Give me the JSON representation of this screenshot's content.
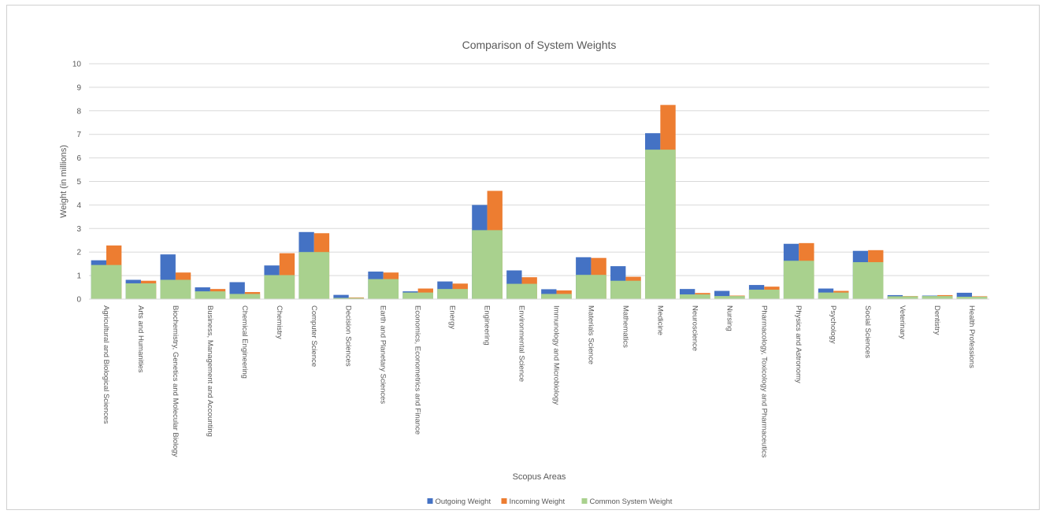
{
  "chart_data": {
    "type": "bar",
    "title": "Comparison of System Weights",
    "xlabel": "Scopus Areas",
    "ylabel": "Weight (in millions)",
    "ylim": [
      0,
      10
    ],
    "yticks": [
      0,
      1,
      2,
      3,
      4,
      5,
      6,
      7,
      8,
      9,
      10
    ],
    "grid": true,
    "legend_position": "bottom",
    "categories": [
      "Agricultural and Biological Sciences",
      "Arts and Humanities",
      "Biochemistry, Genetics and Molecular Biology",
      "Business, Management and Accounting",
      "Chemical Engineering",
      "Chemistry",
      "Computer Science",
      "Decision Sciences",
      "Earth and Planetary Sciences",
      "Economics, Econometrics and Finance",
      "Energy",
      "Engineering",
      "Environmental Science",
      "Immunology and Microbiology",
      "Materials Science",
      "Mathematics",
      "Medicine",
      "Neuroscience",
      "Nursing",
      "Pharmacology, Toxicology and Pharmaceutics",
      "Physics and Astronomy",
      "Psychology",
      "Social Sciences",
      "Veterinary",
      "Dentistry",
      "Health Professions"
    ],
    "series": [
      {
        "name": "Outgoing Weight",
        "color": "#4472C4",
        "values": [
          1.65,
          0.82,
          1.9,
          0.5,
          0.72,
          1.43,
          2.85,
          0.18,
          1.17,
          0.33,
          0.75,
          4.0,
          1.22,
          0.42,
          1.78,
          1.4,
          7.05,
          0.43,
          0.35,
          0.6,
          2.35,
          0.45,
          2.05,
          0.17,
          0.15,
          0.27
        ]
      },
      {
        "name": "Incoming Weight",
        "color": "#ED7D31",
        "values": [
          2.28,
          0.78,
          1.13,
          0.43,
          0.3,
          1.95,
          2.8,
          0.07,
          1.13,
          0.45,
          0.66,
          4.6,
          0.93,
          0.37,
          1.75,
          0.95,
          8.25,
          0.26,
          0.15,
          0.53,
          2.38,
          0.35,
          2.08,
          0.13,
          0.17,
          0.12
        ]
      },
      {
        "name": "Common System Weight",
        "color": "#A9D18E",
        "values": [
          1.45,
          0.67,
          0.82,
          0.33,
          0.22,
          1.02,
          2.0,
          0.05,
          0.85,
          0.28,
          0.43,
          2.93,
          0.65,
          0.22,
          1.03,
          0.78,
          6.35,
          0.2,
          0.13,
          0.4,
          1.63,
          0.28,
          1.57,
          0.12,
          0.13,
          0.1
        ]
      }
    ]
  }
}
